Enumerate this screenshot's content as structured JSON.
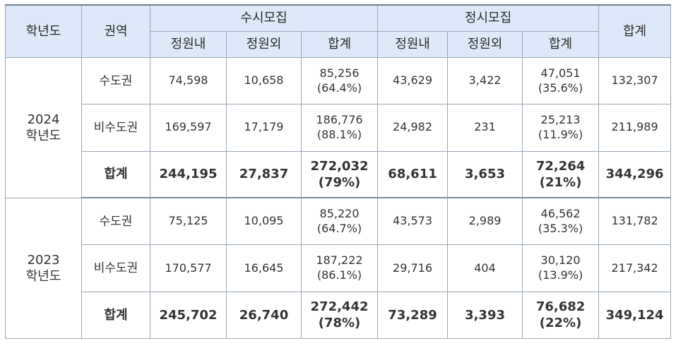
{
  "headers": {
    "year": "학년도",
    "region": "권역",
    "susi": "수시모집",
    "jeongsi": "정시모집",
    "total": "합계",
    "sub": [
      "정원내",
      "정원외",
      "합계",
      "정원내",
      "정원외",
      "합계"
    ]
  },
  "years": [
    {
      "year_line1": "2024",
      "year_line2": "학년도",
      "rows": [
        {
          "region": "수도권",
          "susi_in": "74,598",
          "susi_out": "10,658",
          "susi_total": "85,256",
          "susi_pct": "(64.4%)",
          "jeongsi_in": "43,629",
          "jeongsi_out": "3,422",
          "jeongsi_total": "47,051",
          "jeongsi_pct": "(35.6%)",
          "grand_total": "132,307"
        },
        {
          "region": "비수도권",
          "susi_in": "169,597",
          "susi_out": "17,179",
          "susi_total": "186,776",
          "susi_pct": "(88.1%)",
          "jeongsi_in": "24,982",
          "jeongsi_out": "231",
          "jeongsi_total": "25,213",
          "jeongsi_pct": "(11.9%)",
          "grand_total": "211,989"
        },
        {
          "region": "합계",
          "susi_in": "244,195",
          "susi_out": "27,837",
          "susi_total": "272,032",
          "susi_pct": "(79%)",
          "jeongsi_in": "68,611",
          "jeongsi_out": "3,653",
          "jeongsi_total": "72,264",
          "jeongsi_pct": "(21%)",
          "grand_total": "344,296"
        }
      ]
    },
    {
      "year_line1": "2023",
      "year_line2": "학년도",
      "rows": [
        {
          "region": "수도권",
          "susi_in": "75,125",
          "susi_out": "10,095",
          "susi_total": "85,220",
          "susi_pct": "(64.7%)",
          "jeongsi_in": "43,573",
          "jeongsi_out": "2,989",
          "jeongsi_total": "46,562",
          "jeongsi_pct": "(35.3%)",
          "grand_total": "131,782"
        },
        {
          "region": "비수도권",
          "susi_in": "170,577",
          "susi_out": "16,645",
          "susi_total": "187,222",
          "susi_pct": "(86.1%)",
          "jeongsi_in": "29,716",
          "jeongsi_out": "404",
          "jeongsi_total": "30,120",
          "jeongsi_pct": "(13.9%)",
          "grand_total": "217,342"
        },
        {
          "region": "합계",
          "susi_in": "245,702",
          "susi_out": "26,740",
          "susi_total": "272,442",
          "susi_pct": "(78%)",
          "jeongsi_in": "73,289",
          "jeongsi_out": "3,393",
          "jeongsi_total": "76,682",
          "jeongsi_pct": "(22%)",
          "grand_total": "349,124"
        }
      ]
    }
  ]
}
